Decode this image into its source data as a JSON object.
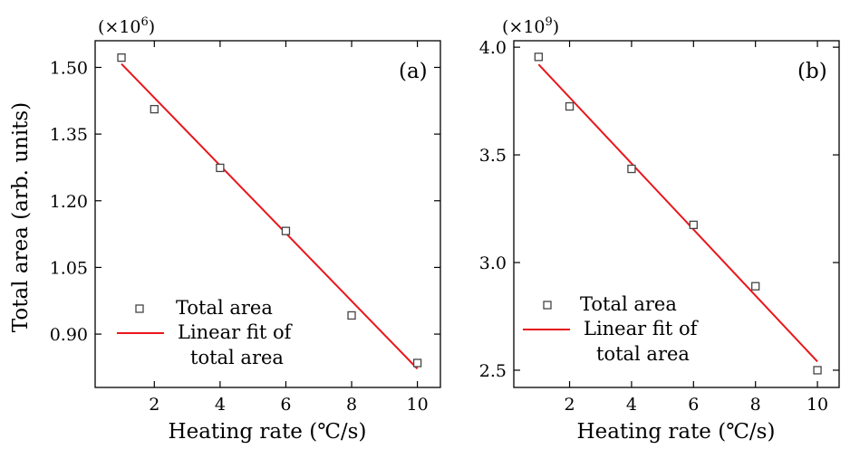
{
  "chart_data": [
    {
      "type": "scatter",
      "panel_label": "(a)",
      "multiplier_prefix": "(×10",
      "multiplier_exp": "6",
      "multiplier_suffix": ")",
      "xlabel": "Heating rate (℃/s)",
      "ylabel": "Total area (arb. units)",
      "xlim": [
        0.2,
        10.7
      ],
      "ylim": [
        0.78,
        1.56
      ],
      "xticks": [
        2,
        4,
        6,
        8,
        10
      ],
      "xtick_labels": [
        "2",
        "4",
        "6",
        "8",
        "10"
      ],
      "yticks": [
        0.9,
        1.05,
        1.2,
        1.35,
        1.5
      ],
      "ytick_labels": [
        "0.90",
        "1.05",
        "1.20",
        "1.35",
        "1.50"
      ],
      "series": [
        {
          "name": "Total area",
          "kind": "scatter",
          "x": [
            1,
            2,
            4,
            6,
            8,
            10
          ],
          "y": [
            1.522,
            1.406,
            1.274,
            1.132,
            0.942,
            0.835
          ]
        },
        {
          "name": "Linear fit of total area",
          "kind": "line",
          "x": [
            1,
            10
          ],
          "y": [
            1.508,
            0.822
          ]
        }
      ],
      "legend": {
        "placement": "bottom-left",
        "entries": [
          "Total area",
          "Linear fit of",
          "total area"
        ]
      },
      "grid": false,
      "colors": {
        "fit": "#e8161b",
        "marker": "#444444"
      }
    },
    {
      "type": "scatter",
      "panel_label": "(b)",
      "multiplier_prefix": "(×10",
      "multiplier_exp": "9",
      "multiplier_suffix": ")",
      "xlabel": "Heating rate (℃/s)",
      "ylabel": "",
      "xlim": [
        0.2,
        10.7
      ],
      "ylim": [
        2.42,
        4.03
      ],
      "xticks": [
        2,
        4,
        6,
        8,
        10
      ],
      "xtick_labels": [
        "2",
        "4",
        "6",
        "8",
        "10"
      ],
      "yticks": [
        2.5,
        3.0,
        3.5,
        4.0
      ],
      "ytick_labels": [
        "2.5",
        "3.0",
        "3.5",
        "4.0"
      ],
      "series": [
        {
          "name": "Total area",
          "kind": "scatter",
          "x": [
            1,
            2,
            4,
            6,
            8,
            10
          ],
          "y": [
            3.955,
            3.725,
            3.435,
            3.175,
            2.89,
            2.5
          ]
        },
        {
          "name": "Linear fit of total area",
          "kind": "line",
          "x": [
            1,
            10
          ],
          "y": [
            3.92,
            2.54
          ]
        }
      ],
      "legend": {
        "placement": "bottom-left",
        "entries": [
          "Total area",
          "Linear fit of",
          "total area"
        ]
      },
      "grid": false,
      "colors": {
        "fit": "#e8161b",
        "marker": "#444444"
      }
    }
  ]
}
